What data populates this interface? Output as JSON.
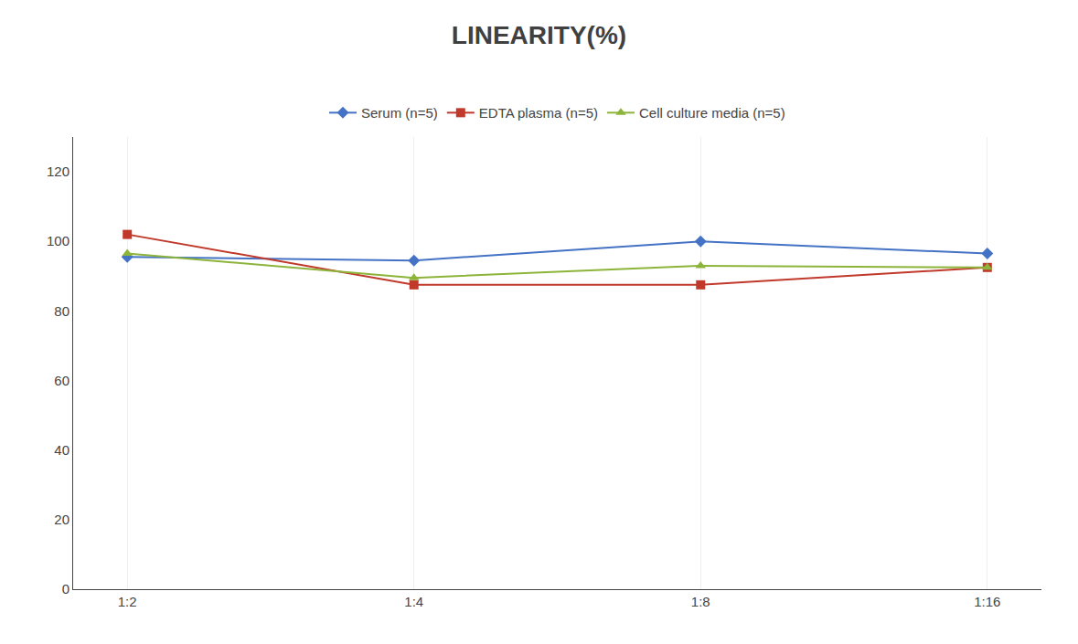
{
  "chart_data": {
    "type": "line",
    "title": "LINEARITY(%)",
    "categories": [
      "1:2",
      "1:4",
      "1:8",
      "1:16"
    ],
    "series": [
      {
        "name": "Serum (n=5)",
        "color": "#4472C4",
        "marker": "diamond",
        "line_style": "solid",
        "values": [
          95.5,
          94.5,
          100.0,
          96.5
        ]
      },
      {
        "name": "EDTA plasma (n=5)",
        "color": "#C0392B",
        "marker": "square",
        "line_style": "solid",
        "values": [
          102.0,
          87.5,
          87.5,
          92.5
        ]
      },
      {
        "name": "Cell culture media (n=5)",
        "color": "#8DB43A",
        "marker": "triangle-up",
        "line_style": "solid",
        "values": [
          96.5,
          89.5,
          93.0,
          92.5
        ]
      }
    ],
    "ylim": [
      0,
      130
    ],
    "yticks": [
      0,
      20,
      40,
      60,
      80,
      100,
      120
    ],
    "grid": "x",
    "legend": "top"
  }
}
